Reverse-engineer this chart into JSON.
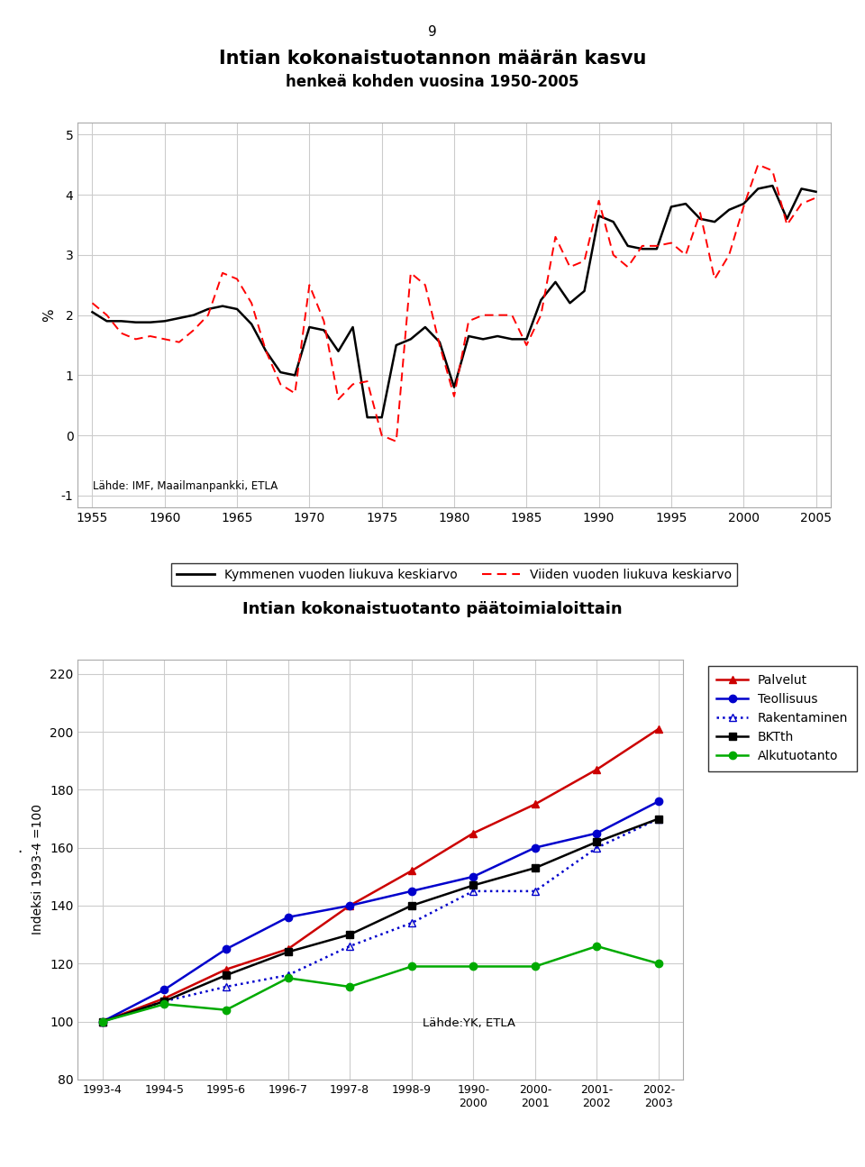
{
  "page_number": "9",
  "chart1": {
    "title": "Intian kokonaistuotannon määrän kasvu",
    "subtitle": "henkeä kohden vuosina 1950-2005",
    "ylabel": "%",
    "source": "Lähde: IMF, Maailmanpankki, ETLA",
    "xlim": [
      1954,
      2006
    ],
    "ylim": [
      -1.2,
      5.2
    ],
    "yticks": [
      -1,
      0,
      1,
      2,
      3,
      4,
      5
    ],
    "xticks": [
      1955,
      1960,
      1965,
      1970,
      1975,
      1980,
      1985,
      1990,
      1995,
      2000,
      2005
    ],
    "legend_entries": [
      "Kymmenen vuoden liukuva keskiarvo",
      "Viiden vuoden liukuva keskiarvo"
    ],
    "black_line_x": [
      1955,
      1956,
      1957,
      1958,
      1959,
      1960,
      1961,
      1962,
      1963,
      1964,
      1965,
      1966,
      1967,
      1968,
      1969,
      1970,
      1971,
      1972,
      1973,
      1974,
      1975,
      1976,
      1977,
      1978,
      1979,
      1980,
      1981,
      1982,
      1983,
      1984,
      1985,
      1986,
      1987,
      1988,
      1989,
      1990,
      1991,
      1992,
      1993,
      1994,
      1995,
      1996,
      1997,
      1998,
      1999,
      2000,
      2001,
      2002,
      2003,
      2004,
      2005
    ],
    "black_line_y": [
      2.05,
      1.9,
      1.9,
      1.88,
      1.88,
      1.9,
      1.95,
      2.0,
      2.1,
      2.15,
      2.1,
      1.85,
      1.4,
      1.05,
      1.0,
      1.8,
      1.75,
      1.4,
      1.8,
      0.3,
      0.3,
      1.5,
      1.6,
      1.8,
      1.55,
      0.8,
      1.65,
      1.6,
      1.65,
      1.6,
      1.6,
      2.25,
      2.55,
      2.2,
      2.4,
      3.65,
      3.55,
      3.15,
      3.1,
      3.1,
      3.8,
      3.85,
      3.6,
      3.55,
      3.75,
      3.85,
      4.1,
      4.15,
      3.6,
      4.1,
      4.05
    ],
    "red_line_x": [
      1955,
      1956,
      1957,
      1958,
      1959,
      1960,
      1961,
      1962,
      1963,
      1964,
      1965,
      1966,
      1967,
      1968,
      1969,
      1970,
      1971,
      1972,
      1973,
      1974,
      1975,
      1976,
      1977,
      1978,
      1979,
      1980,
      1981,
      1982,
      1983,
      1984,
      1985,
      1986,
      1987,
      1988,
      1989,
      1990,
      1991,
      1992,
      1993,
      1994,
      1995,
      1996,
      1997,
      1998,
      1999,
      2000,
      2001,
      2002,
      2003,
      2004,
      2005
    ],
    "red_line_y": [
      2.2,
      2.0,
      1.7,
      1.6,
      1.65,
      1.6,
      1.55,
      1.75,
      2.0,
      2.7,
      2.6,
      2.2,
      1.4,
      0.85,
      0.7,
      2.5,
      1.9,
      0.6,
      0.85,
      0.9,
      0.0,
      -0.1,
      2.7,
      2.5,
      1.5,
      0.65,
      1.9,
      2.0,
      2.0,
      2.0,
      1.5,
      2.0,
      3.3,
      2.8,
      2.9,
      3.9,
      3.0,
      2.8,
      3.15,
      3.15,
      3.2,
      3.0,
      3.7,
      2.6,
      3.0,
      3.8,
      4.5,
      4.4,
      3.5,
      3.85,
      3.95
    ]
  },
  "chart2": {
    "title": "Intian kokonaistuotanto päätoimialoittain",
    "ylabel": "Indeksi 1993-4 =100",
    "source": "Lähde:YK, ETLA",
    "ylim": [
      80,
      225
    ],
    "yticks": [
      80,
      100,
      120,
      140,
      160,
      180,
      200,
      220
    ],
    "ytick_labels": [
      "80",
      "100",
      "120",
      "140",
      "160",
      "180",
      "200",
      "220"
    ],
    "xtick_labels": [
      "1993-4",
      "1994-5",
      "1995-6",
      "1996-7",
      "1997-8",
      "1998-9",
      "1990-\n2000",
      "2000-\n2001",
      "2001-\n2002",
      "2002-\n2003"
    ],
    "dot_label": ".",
    "palvelut": [
      100,
      108,
      118,
      125,
      140,
      152,
      165,
      175,
      187,
      201
    ],
    "teollisuus": [
      100,
      111,
      125,
      136,
      140,
      145,
      150,
      160,
      165,
      176
    ],
    "rakentaminen": [
      100,
      107,
      112,
      116,
      126,
      134,
      145,
      145,
      160,
      170
    ],
    "bktth": [
      100,
      107,
      116,
      124,
      130,
      140,
      147,
      153,
      162,
      170
    ],
    "alkutuotanto": [
      100,
      106,
      104,
      115,
      112,
      119,
      119,
      119,
      126,
      120
    ],
    "legend_labels": [
      "Palvelut",
      "Teollisuus",
      "Rakentaminen",
      "BKTth",
      "Alkutuotanto"
    ],
    "legend_colors": [
      "#cc0000",
      "#0000cc",
      "#0000cc",
      "#000000",
      "#00aa00"
    ],
    "legend_markers": [
      "^",
      "o",
      "^",
      "s",
      "o"
    ],
    "legend_linestyles": [
      "-",
      "-",
      ":",
      "-",
      "-"
    ],
    "legend_fillstyles": [
      "full",
      "full",
      "none",
      "full",
      "full"
    ]
  }
}
